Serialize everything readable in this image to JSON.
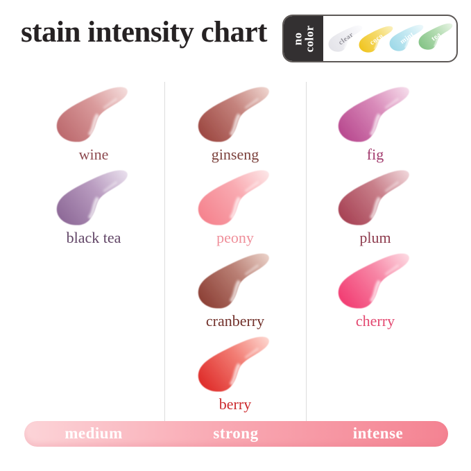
{
  "title": "stain intensity chart",
  "no_color_badge": {
    "label_line1": "no",
    "label_line2": "color",
    "dark_bg": "#333031",
    "swatches": [
      {
        "name": "clear",
        "color": "#e4e4e9",
        "mid": "#efeff3",
        "fade": "#fbfbfd",
        "label_color": "#94939b"
      },
      {
        "name": "coco",
        "color": "#f0c522",
        "mid": "#f5da6a",
        "fade": "#faf0bb",
        "label_color": "#ffffff"
      },
      {
        "name": "mint",
        "color": "#9fd9e8",
        "mid": "#c5e9f2",
        "fade": "#ecf8fb",
        "label_color": "#ffffff"
      },
      {
        "name": "tea",
        "color": "#86c488",
        "mid": "#b4dcb2",
        "fade": "#e6f3e3",
        "label_color": "#ffffff"
      }
    ]
  },
  "columns": [
    {
      "intensity": "medium",
      "shades": [
        {
          "name": "wine",
          "color": "#bd6b6f",
          "mid": "#d99a9b",
          "fade": "#f4dcdb",
          "label_color": "#8d4a50"
        },
        {
          "name": "black tea",
          "color": "#8f6b99",
          "mid": "#b99cc0",
          "fade": "#e8deec",
          "label_color": "#614566"
        }
      ]
    },
    {
      "intensity": "strong",
      "shades": [
        {
          "name": "ginseng",
          "color": "#9e4a44",
          "mid": "#c4837d",
          "fade": "#eed3cd",
          "label_color": "#7c413c"
        },
        {
          "name": "peony",
          "color": "#f5848f",
          "mid": "#f9aab1",
          "fade": "#fde5e6",
          "label_color": "#ef8f9a"
        },
        {
          "name": "cranberry",
          "color": "#8e4238",
          "mid": "#b97f74",
          "fade": "#e9cfc6",
          "label_color": "#71302a"
        },
        {
          "name": "berry",
          "color": "#df2f2c",
          "mid": "#f27d74",
          "fade": "#fdd4cd",
          "label_color": "#cc2a2e"
        }
      ]
    },
    {
      "intensity": "intense",
      "shades": [
        {
          "name": "fig",
          "color": "#b94b90",
          "mid": "#d98cba",
          "fade": "#f5dbea",
          "label_color": "#a23b6e"
        },
        {
          "name": "plum",
          "color": "#a84456",
          "mid": "#c87f8a",
          "fade": "#efd4d8",
          "label_color": "#8e3c4e"
        },
        {
          "name": "cherry",
          "color": "#f23f74",
          "mid": "#f787a6",
          "fade": "#fdd8e1",
          "label_color": "#e34870"
        }
      ]
    }
  ],
  "scale_bar": {
    "labels": [
      "medium",
      "strong",
      "intense"
    ],
    "gradient_start": "#fcd4d8",
    "gradient_mid": "#f9aab4",
    "gradient_end": "#f48392"
  }
}
